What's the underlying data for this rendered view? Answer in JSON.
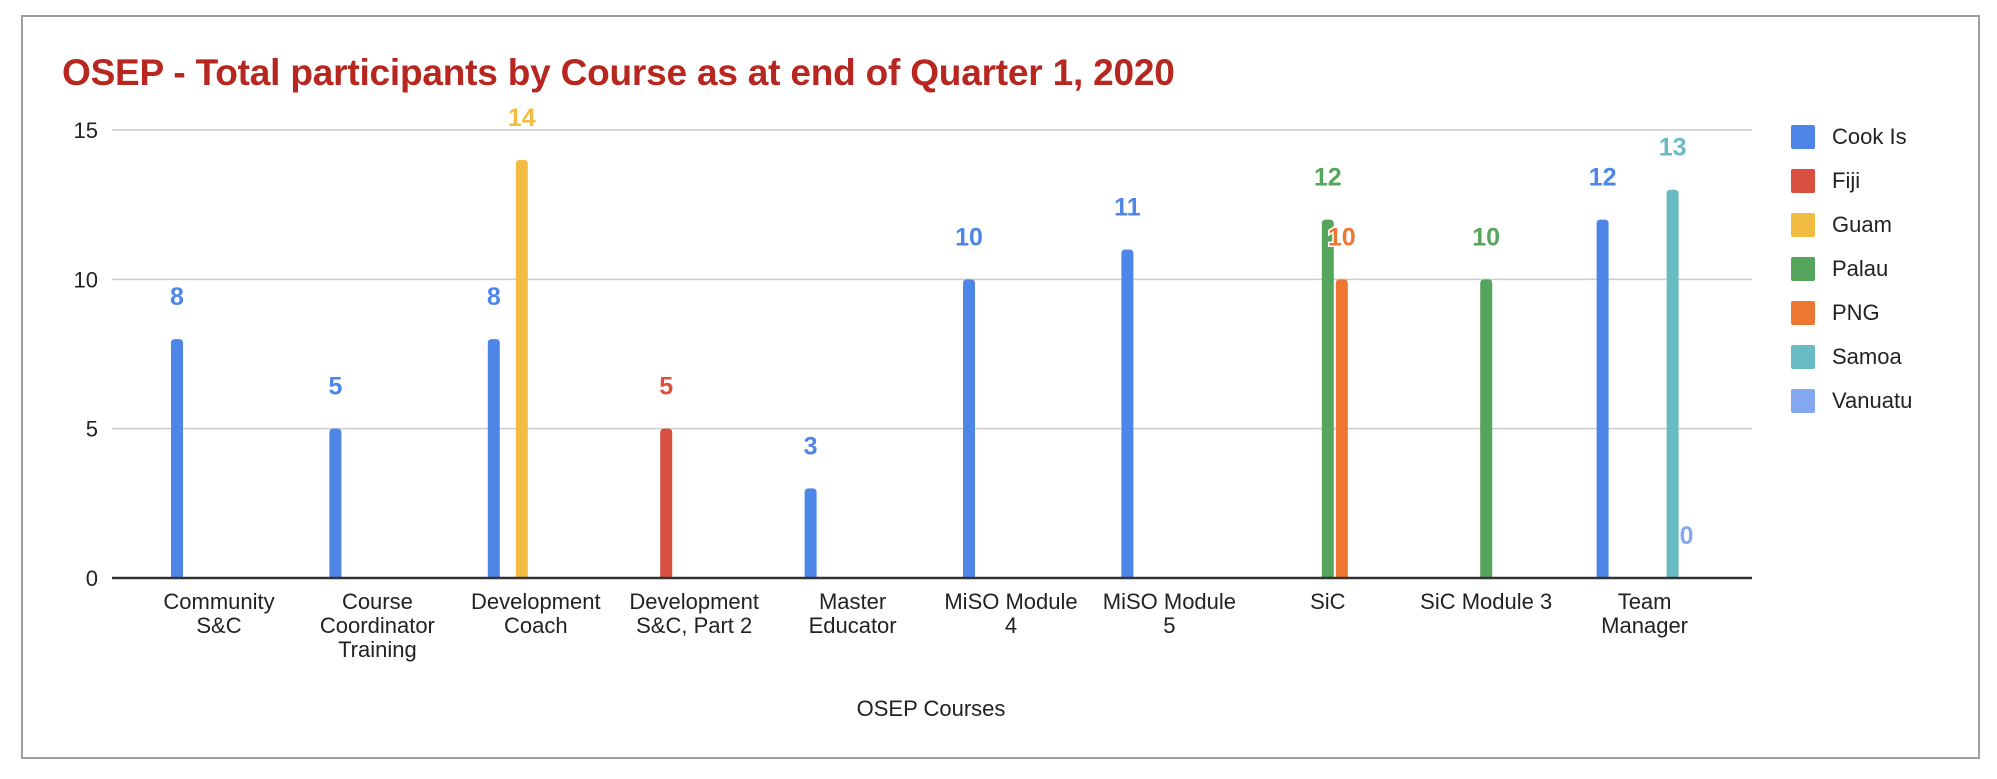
{
  "chart_data": {
    "type": "bar",
    "title": "OSEP - Total participants by Course as at end of Quarter 1, 2020",
    "xlabel": "OSEP Courses",
    "ylabel": "",
    "ylim": [
      0,
      15
    ],
    "yticks": [
      0,
      5,
      10,
      15
    ],
    "grid": true,
    "legend_position": "right",
    "categories": [
      "Community S&C",
      "Course Coordinator Training",
      "Development Coach",
      "Development S&C, Part 2",
      "Master Educator",
      "MiSO Module 4",
      "MiSO Module 5",
      "SiC",
      "SiC Module 3",
      "Team Manager"
    ],
    "category_label_lines": [
      [
        "Community",
        "S&C"
      ],
      [
        "Course",
        "Coordinator",
        "Training"
      ],
      [
        "Development",
        "Coach"
      ],
      [
        "Development",
        "S&C, Part 2"
      ],
      [
        "Master",
        "Educator"
      ],
      [
        "MiSO Module",
        "4"
      ],
      [
        "MiSO Module",
        "5"
      ],
      [
        "SiC"
      ],
      [
        "SiC Module 3"
      ],
      [
        "Team",
        "Manager"
      ]
    ],
    "series": [
      {
        "name": "Cook Is",
        "color": "#4e86e8",
        "values": [
          8,
          5,
          8,
          null,
          3,
          10,
          11,
          null,
          null,
          12
        ]
      },
      {
        "name": "Fiji",
        "color": "#d95040",
        "values": [
          null,
          null,
          null,
          5,
          null,
          null,
          null,
          null,
          null,
          null
        ]
      },
      {
        "name": "Guam",
        "color": "#f2bc42",
        "values": [
          null,
          null,
          14,
          null,
          null,
          null,
          null,
          null,
          null,
          null
        ]
      },
      {
        "name": "Palau",
        "color": "#56a55c",
        "values": [
          null,
          null,
          null,
          null,
          null,
          null,
          null,
          12,
          10,
          null
        ]
      },
      {
        "name": "PNG",
        "color": "#ed7630",
        "values": [
          null,
          null,
          null,
          null,
          null,
          null,
          null,
          10,
          null,
          null
        ]
      },
      {
        "name": "Samoa",
        "color": "#68bbc3",
        "values": [
          null,
          null,
          null,
          null,
          null,
          null,
          null,
          null,
          null,
          13
        ]
      },
      {
        "name": "Vanuatu",
        "color": "#83a8ef",
        "values": [
          null,
          null,
          null,
          null,
          null,
          null,
          null,
          null,
          null,
          0
        ]
      }
    ]
  }
}
